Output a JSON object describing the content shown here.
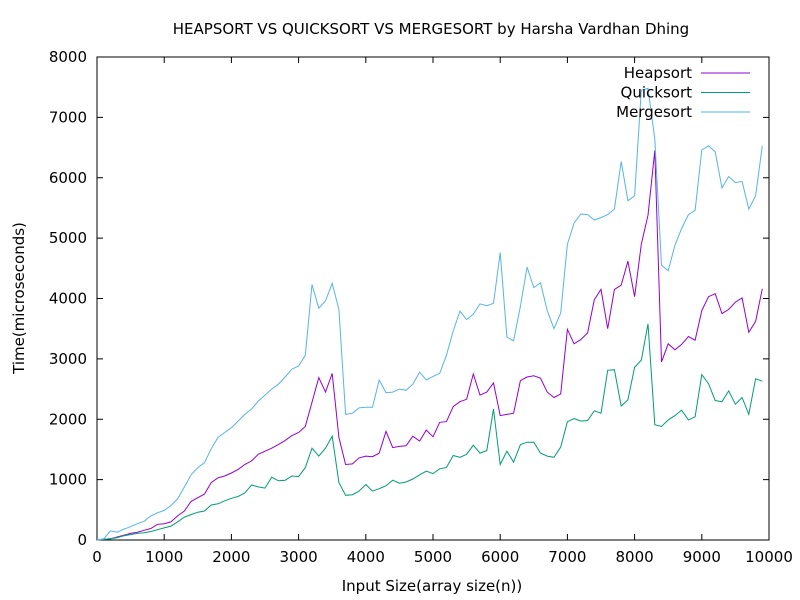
{
  "chart_data": {
    "type": "line",
    "title": "HEAPSORT VS QUICKSORT VS MERGESORT by Harsha Vardhan Dhing",
    "xlabel": "Input Size(array size(n))",
    "ylabel": "Time(microseconds)",
    "xlim": [
      0,
      10000
    ],
    "ylim": [
      0,
      8000
    ],
    "xticks": [
      0,
      1000,
      2000,
      3000,
      4000,
      5000,
      6000,
      7000,
      8000,
      9000,
      10000
    ],
    "yticks": [
      0,
      1000,
      2000,
      3000,
      4000,
      5000,
      6000,
      7000,
      8000
    ],
    "xtick_labels": [
      "0",
      "1000",
      "2000",
      "3000",
      "4000",
      "5000",
      "6000",
      "7000",
      "8000",
      "9000",
      "10000"
    ],
    "ytick_labels": [
      "0",
      "1000",
      "2000",
      "3000",
      "4000",
      "5000",
      "6000",
      "7000",
      "8000"
    ],
    "grid": false,
    "legend_position": "top-right",
    "x": [
      0,
      100,
      200,
      300,
      400,
      500,
      600,
      700,
      800,
      900,
      1000,
      1100,
      1200,
      1300,
      1400,
      1500,
      1600,
      1700,
      1800,
      1900,
      2000,
      2100,
      2200,
      2300,
      2400,
      2500,
      2600,
      2700,
      2800,
      2900,
      3000,
      3100,
      3200,
      3300,
      3400,
      3500,
      3600,
      3700,
      3800,
      3900,
      4000,
      4100,
      4200,
      4300,
      4400,
      4500,
      4600,
      4700,
      4800,
      4900,
      5000,
      5100,
      5200,
      5300,
      5400,
      5500,
      5600,
      5700,
      5800,
      5900,
      6000,
      6100,
      6200,
      6300,
      6400,
      6500,
      6600,
      6700,
      6800,
      6900,
      7000,
      7100,
      7200,
      7300,
      7400,
      7500,
      7600,
      7700,
      7800,
      7900,
      8000,
      8100,
      8200,
      8300,
      8400,
      8500,
      8600,
      8700,
      8800,
      8900,
      9000,
      9100,
      9200,
      9300,
      9400,
      9500,
      9600,
      9700,
      9800,
      9900
    ],
    "series": [
      {
        "name": "Heapsort",
        "color": "#9400d3",
        "values": [
          0,
          10,
          20,
          50,
          80,
          110,
          130,
          160,
          190,
          260,
          270,
          300,
          400,
          480,
          640,
          700,
          760,
          950,
          1030,
          1060,
          1110,
          1170,
          1250,
          1310,
          1420,
          1470,
          1520,
          1580,
          1650,
          1730,
          1780,
          1880,
          2280,
          2690,
          2450,
          2760,
          1700,
          1250,
          1260,
          1360,
          1390,
          1380,
          1440,
          1800,
          1530,
          1550,
          1560,
          1720,
          1640,
          1820,
          1710,
          1950,
          1960,
          2210,
          2290,
          2330,
          2750,
          2400,
          2450,
          2600,
          2060,
          2080,
          2100,
          2640,
          2700,
          2720,
          2680,
          2450,
          2360,
          2420,
          3490,
          3250,
          3320,
          3430,
          3980,
          4150,
          3500,
          4150,
          4220,
          4620,
          4030,
          4900,
          5380,
          6450,
          2950,
          3250,
          3150,
          3240,
          3370,
          3310,
          3800,
          4030,
          4080,
          3750,
          3820,
          3940,
          4010,
          3440,
          3620,
          4160
        ]
      },
      {
        "name": "Quicksort",
        "color": "#009e73",
        "values": [
          0,
          10,
          20,
          40,
          70,
          90,
          110,
          120,
          140,
          170,
          200,
          230,
          300,
          380,
          420,
          460,
          480,
          580,
          600,
          650,
          690,
          720,
          780,
          910,
          880,
          860,
          1040,
          980,
          990,
          1060,
          1050,
          1200,
          1520,
          1390,
          1520,
          1720,
          950,
          740,
          750,
          810,
          920,
          810,
          850,
          900,
          990,
          940,
          960,
          1010,
          1080,
          1140,
          1100,
          1180,
          1200,
          1400,
          1370,
          1420,
          1570,
          1440,
          1480,
          2170,
          1250,
          1470,
          1290,
          1580,
          1620,
          1620,
          1440,
          1390,
          1370,
          1540,
          1960,
          2010,
          1970,
          1980,
          2140,
          2100,
          2810,
          2820,
          2220,
          2320,
          2860,
          2980,
          3580,
          1910,
          1880,
          1990,
          2060,
          2150,
          1990,
          2040,
          2740,
          2590,
          2310,
          2290,
          2470,
          2250,
          2360,
          2080,
          2670,
          2630
        ]
      },
      {
        "name": "Mergesort",
        "color": "#56b4e9",
        "values": [
          0,
          20,
          150,
          130,
          180,
          220,
          270,
          310,
          400,
          450,
          490,
          570,
          680,
          880,
          1080,
          1200,
          1280,
          1510,
          1700,
          1780,
          1860,
          1970,
          2080,
          2170,
          2300,
          2400,
          2500,
          2580,
          2700,
          2830,
          2880,
          3060,
          4230,
          3840,
          3960,
          4250,
          3820,
          2080,
          2100,
          2190,
          2200,
          2200,
          2650,
          2440,
          2450,
          2500,
          2480,
          2580,
          2780,
          2650,
          2710,
          2760,
          3060,
          3460,
          3790,
          3650,
          3740,
          3910,
          3880,
          3920,
          4760,
          3360,
          3300,
          3870,
          4520,
          4180,
          4260,
          3800,
          3500,
          3760,
          4900,
          5250,
          5400,
          5390,
          5300,
          5340,
          5390,
          5480,
          6270,
          5620,
          5700,
          7450,
          7480,
          6640,
          4550,
          4460,
          4880,
          5160,
          5390,
          5460,
          6460,
          6530,
          6430,
          5830,
          6020,
          5920,
          5940,
          5480,
          5700,
          6530
        ]
      }
    ]
  }
}
